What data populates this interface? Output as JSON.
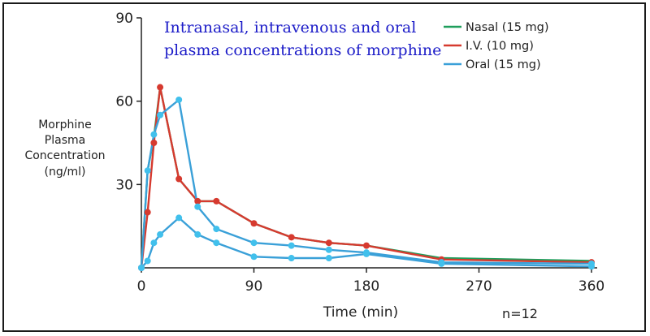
{
  "chart_data": {
    "type": "line",
    "title_lines": [
      "Intranasal, intravenous and oral",
      "plasma concentrations of morphine"
    ],
    "xlabel": "Time (min)",
    "ylabel_lines": [
      "Morphine",
      "Plasma",
      "Concentration",
      "(ng/ml)"
    ],
    "xlim": [
      0,
      365
    ],
    "ylim": [
      0,
      90
    ],
    "xticks": [
      0,
      90,
      180,
      270,
      360
    ],
    "yticks": [
      30,
      60,
      90
    ],
    "note": "n=12",
    "series": [
      {
        "name": "Nasal (15 mg)",
        "color": "#1f9e5c",
        "marker_color": "#1f9e5c",
        "markers": false,
        "x": [
          0,
          5,
          10,
          15,
          30,
          45,
          60,
          90,
          120,
          150,
          180,
          240,
          360
        ],
        "y": [
          0,
          35,
          47,
          65,
          32,
          24,
          24,
          16,
          11,
          9,
          8,
          3.5,
          2.5
        ]
      },
      {
        "name": "I.V. (10 mg)",
        "color": "#d63a2f",
        "marker_color": "#d63a2f",
        "markers": true,
        "x": [
          0,
          5,
          10,
          15,
          30,
          45,
          60,
          90,
          120,
          150,
          180,
          240,
          360
        ],
        "y": [
          0,
          20,
          45,
          65,
          32,
          24,
          24,
          16,
          11,
          9,
          8,
          3,
          2
        ]
      },
      {
        "name": "Oral (15 mg)",
        "color": "#3aa0d8",
        "marker_color": "#41c0ec",
        "markers": true,
        "x": [
          0,
          5,
          10,
          15,
          30,
          45,
          60,
          90,
          120,
          150,
          180,
          240,
          360
        ],
        "y": [
          0,
          35,
          48,
          55,
          60.5,
          22,
          14,
          9,
          8,
          6.5,
          5.5,
          2,
          1.5
        ]
      },
      {
        "name": "Oral (15 mg) low",
        "color": "#3aa0d8",
        "marker_color": "#41c0ec",
        "markers": true,
        "legend": false,
        "x": [
          0,
          5,
          10,
          15,
          30,
          45,
          60,
          90,
          120,
          150,
          180,
          240,
          360
        ],
        "y": [
          0,
          2.5,
          9,
          12,
          18,
          12,
          9,
          4,
          3.5,
          3.5,
          5,
          1.5,
          0.5
        ]
      }
    ],
    "legend": [
      {
        "label": "Nasal (15 mg)",
        "color": "#1f9e5c"
      },
      {
        "label": "I.V. (10 mg)",
        "color": "#d63a2f"
      },
      {
        "label": "Oral (15 mg)",
        "color": "#3aa0d8"
      }
    ]
  }
}
